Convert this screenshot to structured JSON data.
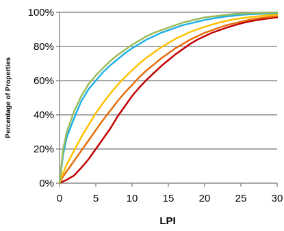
{
  "chart_data": {
    "type": "line",
    "title": "",
    "xlabel": "LPI",
    "ylabel": "Percentage of Properties",
    "xlim": [
      0,
      30
    ],
    "ylim": [
      0,
      100
    ],
    "x_ticks": [
      "0",
      "5",
      "10",
      "15",
      "20",
      "25",
      "30"
    ],
    "y_ticks": [
      "0%",
      "20%",
      "40%",
      "60%",
      "80%",
      "100%"
    ],
    "grid": "horizontal",
    "legend": "none",
    "x": [
      0,
      0.5,
      1,
      2,
      3,
      4,
      5,
      6,
      7,
      8,
      9,
      10,
      11,
      12,
      13,
      14,
      15,
      16,
      17,
      18,
      19,
      20,
      21,
      22,
      23,
      24,
      25,
      26,
      27,
      28,
      29,
      30
    ],
    "series": [
      {
        "color": "#9bbb59",
        "values": [
          0,
          20,
          30,
          42,
          51,
          58,
          63,
          67.5,
          71.5,
          75,
          78,
          81,
          83.5,
          86,
          88,
          89.5,
          91,
          92.5,
          94,
          95,
          96,
          97,
          97.5,
          98,
          98.5,
          99,
          99.2,
          99.4,
          99.6,
          99.8,
          99.9,
          100
        ]
      },
      {
        "color": "#1fb0e6",
        "values": [
          0,
          17,
          27,
          38,
          48,
          55,
          60,
          65,
          69,
          72.5,
          76,
          79,
          81.5,
          84,
          86,
          88,
          89.5,
          91,
          92.5,
          93.5,
          94.5,
          95.5,
          96.3,
          97,
          97.6,
          98,
          98.5,
          98.8,
          99,
          99.2,
          99.4,
          99.6
        ]
      },
      {
        "color": "#ffc000",
        "values": [
          0,
          6,
          11,
          19,
          27,
          34,
          41,
          47,
          52.5,
          57.5,
          62,
          66,
          70,
          73.5,
          76.5,
          79.5,
          82,
          84.5,
          86.5,
          88.5,
          90,
          91.5,
          92.8,
          94,
          95,
          95.8,
          96.5,
          97,
          97.5,
          98,
          98.4,
          98.7
        ]
      },
      {
        "color": "#e46c0a",
        "values": [
          0,
          4,
          7,
          13,
          19,
          25,
          31,
          37,
          42.5,
          48,
          53,
          57.5,
          62,
          66,
          69.5,
          73,
          76,
          79,
          81.5,
          84,
          86,
          88,
          89.5,
          91,
          92.5,
          93.5,
          94.5,
          95.5,
          96.2,
          96.8,
          97.3,
          97.7
        ]
      },
      {
        "color": "#c00000",
        "values": [
          0,
          1,
          2,
          4.5,
          9,
          14,
          20,
          26,
          32,
          39,
          45,
          51,
          56,
          60.5,
          64.5,
          68.5,
          72,
          75.5,
          78.5,
          81.5,
          84,
          86,
          88,
          89.5,
          91,
          92.3,
          93.5,
          94.5,
          95.3,
          96,
          96.5,
          97
        ]
      }
    ]
  }
}
